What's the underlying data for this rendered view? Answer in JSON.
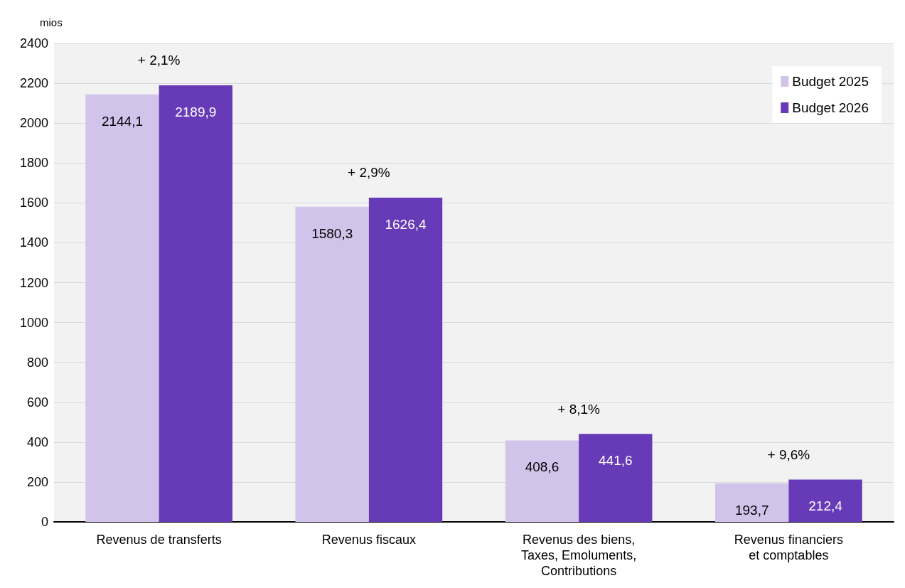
{
  "chart_data": {
    "type": "bar",
    "ylabel": "mios",
    "categories": [
      "Revenus de transferts",
      "Revenus fiscaux",
      "Revenus des biens,\nTaxes, Emoluments,\nContributions",
      "Revenus financiers\net comptables"
    ],
    "series": [
      {
        "name": "Budget 2025",
        "color": "#d1c3ea",
        "values": [
          2144.1,
          1580.3,
          408.6,
          193.7
        ],
        "value_labels": [
          "2144,1",
          "1580,3",
          "408,6",
          "193,7"
        ]
      },
      {
        "name": "Budget 2026",
        "color": "#673ab7",
        "values": [
          2189.9,
          1626.4,
          441.6,
          212.4
        ],
        "value_labels": [
          "2189,9",
          "1626,4",
          "441,6",
          "212,4"
        ]
      }
    ],
    "ylim": [
      0,
      2400
    ],
    "yticks": [
      0,
      200,
      400,
      600,
      800,
      1000,
      1200,
      1400,
      1600,
      1800,
      2000,
      2200,
      2400
    ],
    "grid": "y",
    "legend": "top right",
    "annotations": [
      "+ 2,1%",
      "+ 2,9%",
      "+ 8,1%",
      "+ 9,6%"
    ]
  }
}
